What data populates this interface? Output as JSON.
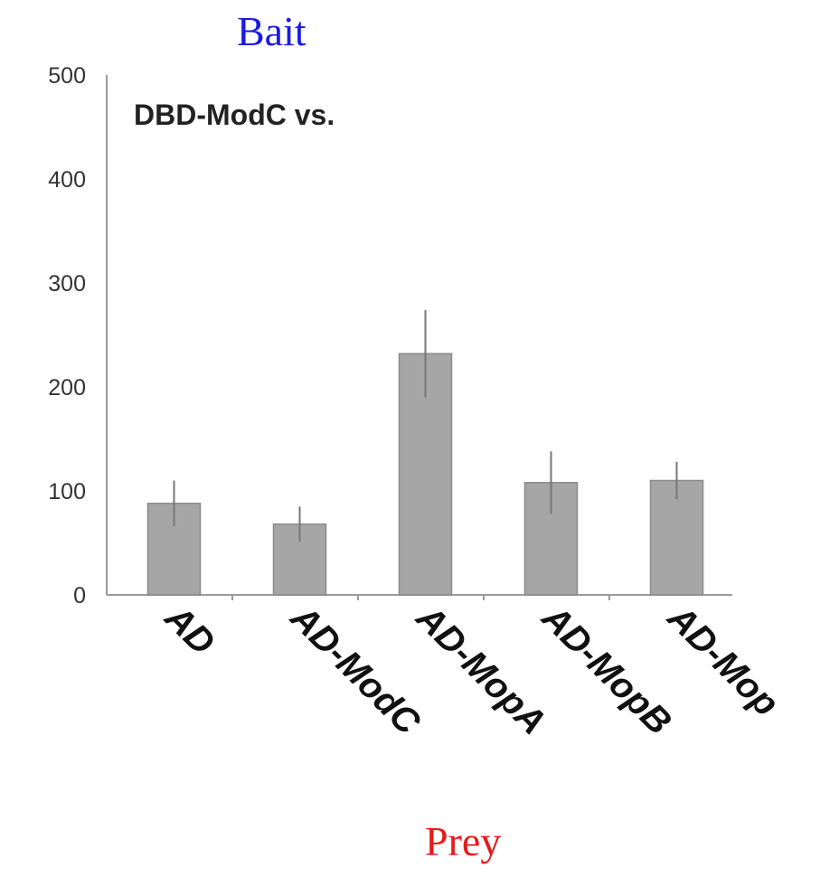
{
  "annotations": {
    "top": "Bait",
    "bottom": "Prey"
  },
  "colors": {
    "top_annotation": "#1a1ae6",
    "bottom_annotation": "#e61a1a",
    "bar_fill": "#a6a6a6",
    "bar_stroke": "#8a8a8a",
    "axis": "#9a9a9a",
    "error_bar": "#777777"
  },
  "chart_data": {
    "type": "bar",
    "title": "DBD-ModC vs.",
    "xlabel": "",
    "ylabel": "",
    "ylim": [
      0,
      500
    ],
    "yticks": [
      0,
      100,
      200,
      300,
      400,
      500
    ],
    "grid": false,
    "categories": [
      "AD",
      "AD-ModC",
      "AD-MopA",
      "AD-MopB",
      "AD-Mop"
    ],
    "series": [
      {
        "values": [
          88,
          68,
          232,
          108,
          110
        ],
        "errors": [
          22,
          17,
          42,
          30,
          18
        ]
      }
    ]
  }
}
